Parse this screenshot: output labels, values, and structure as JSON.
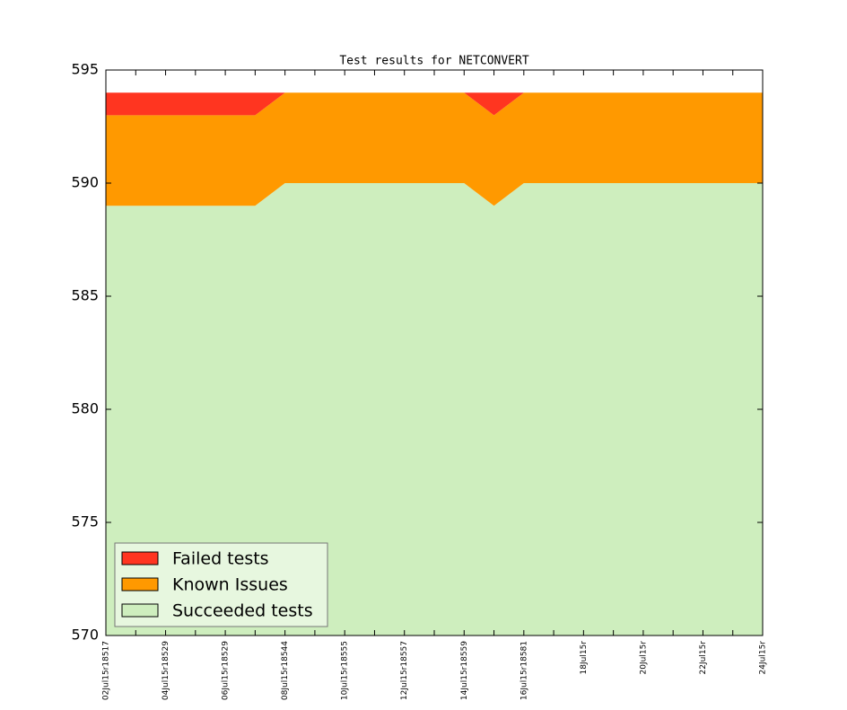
{
  "chart_data": {
    "type": "stacked_area",
    "title": "Test results for NETCONVERT",
    "categories": [
      "02Jul15r18517",
      null,
      "04Jul15r18529",
      null,
      "06Jul15r18529",
      null,
      "08Jul15r18544",
      null,
      "10Jul15r18555",
      null,
      "12Jul15r18557",
      null,
      "14Jul15r18559",
      null,
      "16Jul15r18581",
      null,
      "18Jul15r",
      null,
      "20Jul15r",
      null,
      "22Jul15r",
      null,
      "24Jul15r"
    ],
    "series": [
      {
        "name": "Failed tests",
        "color": "#ff3520",
        "values": [
          1,
          1,
          1,
          1,
          1,
          1,
          0,
          0,
          0,
          0,
          0,
          0,
          0,
          1,
          0,
          0,
          0,
          0,
          0,
          0,
          0,
          0,
          0
        ]
      },
      {
        "name": "Known Issues",
        "color": "#ff9900",
        "values": [
          4,
          4,
          4,
          4,
          4,
          4,
          4,
          4,
          4,
          4,
          4,
          4,
          4,
          4,
          4,
          4,
          4,
          4,
          4,
          4,
          4,
          4,
          4
        ]
      },
      {
        "name": "Succeeded tests",
        "color": "#ceeebe",
        "values": [
          589,
          589,
          589,
          589,
          589,
          589,
          590,
          590,
          590,
          590,
          590,
          590,
          590,
          589,
          590,
          590,
          590,
          590,
          590,
          590,
          590,
          590,
          590
        ]
      }
    ],
    "ylim": [
      570,
      595
    ],
    "yticks": [
      570,
      575,
      580,
      585,
      590,
      595
    ],
    "legend": "lower left"
  }
}
